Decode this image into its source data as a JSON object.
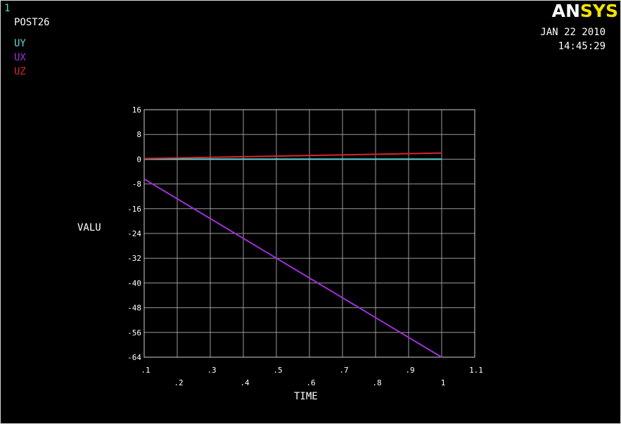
{
  "header": {
    "window_number": "1",
    "title": "POST26",
    "date": "JAN 22 2010",
    "time": "14:45:29",
    "logo_an": "AN",
    "logo_sys": "SYS"
  },
  "legend": [
    {
      "label": "UY",
      "color": "#5fd7d7"
    },
    {
      "label": "UX",
      "color": "#9b30d9"
    },
    {
      "label": "UZ",
      "color": "#d7262c"
    }
  ],
  "chart_data": {
    "type": "line",
    "xlabel": "TIME",
    "ylabel": "VALU",
    "xlim": [
      0.1,
      1.1
    ],
    "ylim": [
      -64,
      16
    ],
    "grid": true,
    "xticks": [
      ".1",
      ".2",
      ".3",
      ".4",
      ".5",
      ".6",
      ".7",
      ".8",
      ".9",
      "1",
      "1.1"
    ],
    "yticks": [
      "16",
      "8",
      "0",
      "-8",
      "-16",
      "-24",
      "-32",
      "-40",
      "-48",
      "-56",
      "-64"
    ],
    "x": [
      0.1,
      0.2,
      0.3,
      0.4,
      0.5,
      0.6,
      0.7,
      0.8,
      0.9,
      1.0
    ],
    "series": [
      {
        "name": "UY",
        "color": "#5fd7d7",
        "values": [
          0,
          0,
          0,
          0,
          0,
          0,
          0,
          0,
          0,
          0
        ]
      },
      {
        "name": "UX",
        "color": "#9b30d9",
        "values": [
          -6.4,
          -12.8,
          -19.2,
          -25.6,
          -32.0,
          -38.4,
          -44.8,
          -51.2,
          -57.6,
          -64.0
        ]
      },
      {
        "name": "UZ",
        "color": "#d7262c",
        "values": [
          0.2,
          0.4,
          0.6,
          0.8,
          1.0,
          1.2,
          1.4,
          1.6,
          1.8,
          2.0
        ]
      }
    ]
  }
}
